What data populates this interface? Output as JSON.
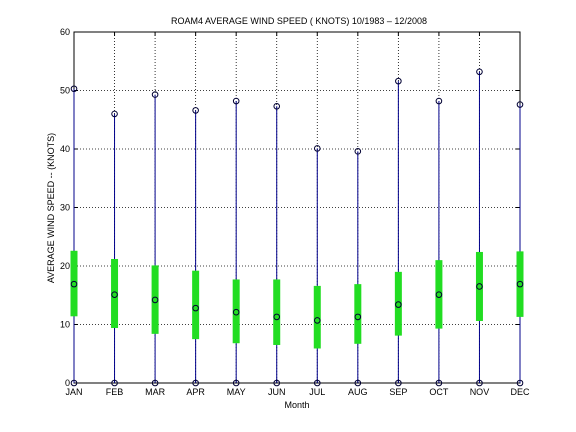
{
  "chart_data": {
    "type": "boxplot",
    "title": "ROAM4  AVERAGE WIND SPEED ( KNOTS) 10/1983 – 12/2008",
    "xlabel": "Month",
    "ylabel": "AVERAGE WIND SPEED -- (KNOTS)",
    "ylim": [
      0,
      60
    ],
    "yticks": [
      0,
      10,
      20,
      30,
      40,
      50,
      60
    ],
    "grid": true,
    "categories": [
      "JAN",
      "FEB",
      "MAR",
      "APR",
      "MAY",
      "JUN",
      "JUL",
      "AUG",
      "SEP",
      "OCT",
      "NOV",
      "DEC"
    ],
    "min": [
      0,
      0,
      0,
      0,
      0,
      0,
      0,
      0,
      0,
      0,
      0,
      0
    ],
    "max": [
      50.3,
      46.0,
      49.3,
      46.6,
      48.2,
      47.3,
      40.1,
      39.6,
      51.6,
      48.2,
      53.2,
      47.6
    ],
    "mean": [
      16.9,
      15.1,
      14.2,
      12.8,
      12.1,
      11.3,
      10.7,
      11.3,
      13.4,
      15.1,
      16.5,
      16.9
    ],
    "std_low": [
      11.4,
      9.4,
      8.4,
      7.5,
      6.8,
      6.5,
      5.9,
      6.7,
      8.1,
      9.3,
      10.6,
      11.3
    ],
    "std_high": [
      22.6,
      21.2,
      20.1,
      19.2,
      17.7,
      17.7,
      16.6,
      16.9,
      19.0,
      21.0,
      22.4,
      22.5
    ],
    "colors": {
      "whisker": "#00008b",
      "std_bar": "#22dd22",
      "marker": "#000033"
    }
  }
}
